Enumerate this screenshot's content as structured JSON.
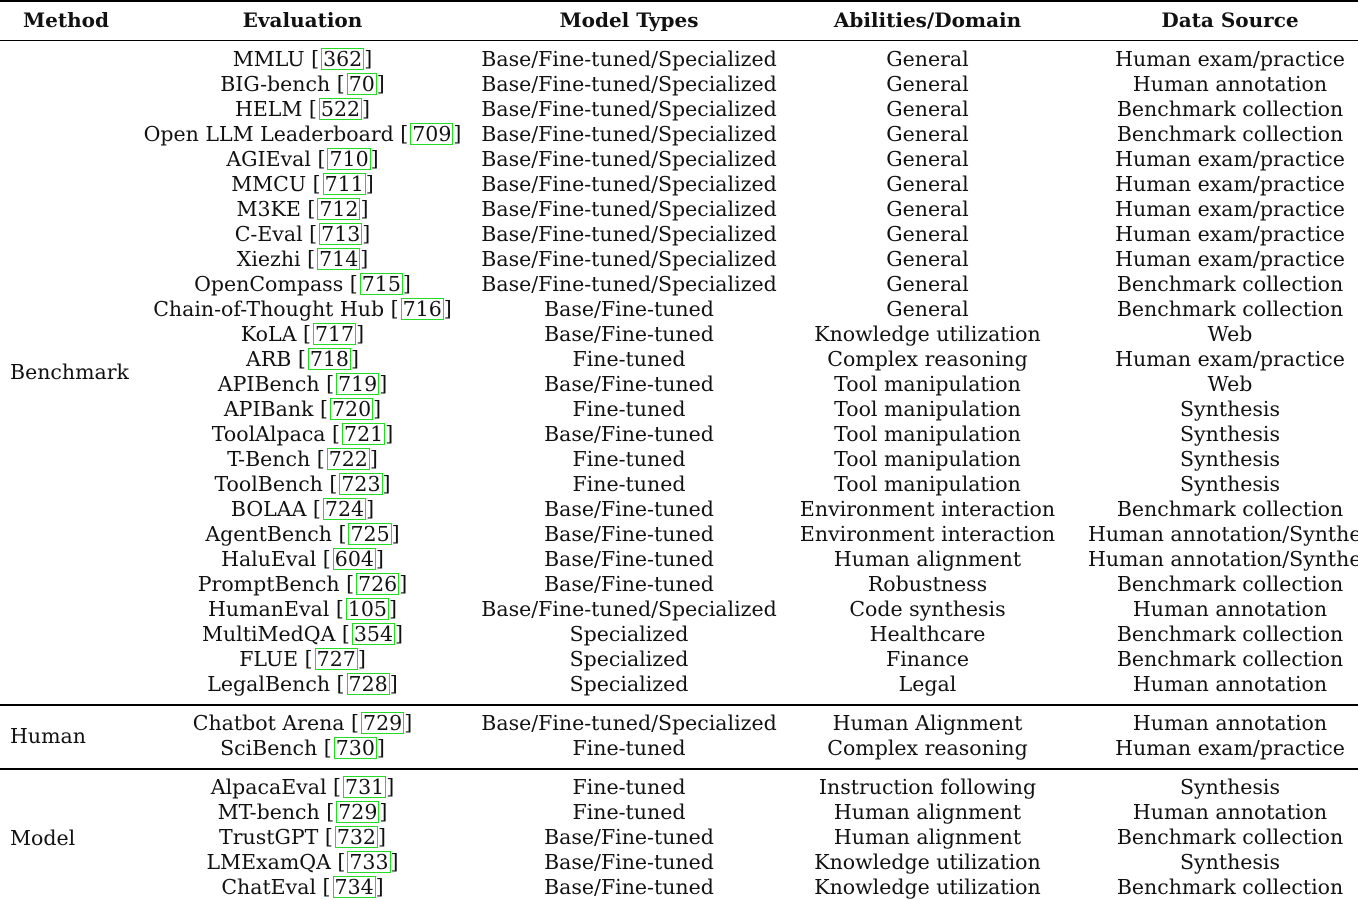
{
  "headers": [
    "Method",
    "Evaluation",
    "Model Types",
    "Abilities/Domain",
    "Data Source"
  ],
  "groups": [
    {
      "method": "Benchmark",
      "rows": [
        {
          "eval": "MMLU",
          "ref": "362",
          "type": "Base/Fine-tuned/Specialized",
          "ability": "General",
          "source": "Human exam/practice"
        },
        {
          "eval": "BIG-bench",
          "ref": "70",
          "type": "Base/Fine-tuned/Specialized",
          "ability": "General",
          "source": "Human annotation"
        },
        {
          "eval": "HELM",
          "ref": "522",
          "type": "Base/Fine-tuned/Specialized",
          "ability": "General",
          "source": "Benchmark collection"
        },
        {
          "eval": "Open LLM Leaderboard",
          "ref": "709",
          "type": "Base/Fine-tuned/Specialized",
          "ability": "General",
          "source": "Benchmark collection"
        },
        {
          "eval": "AGIEval",
          "ref": "710",
          "type": "Base/Fine-tuned/Specialized",
          "ability": "General",
          "source": "Human exam/practice"
        },
        {
          "eval": "MMCU",
          "ref": "711",
          "type": "Base/Fine-tuned/Specialized",
          "ability": "General",
          "source": "Human exam/practice"
        },
        {
          "eval": "M3KE",
          "ref": "712",
          "type": "Base/Fine-tuned/Specialized",
          "ability": "General",
          "source": "Human exam/practice"
        },
        {
          "eval": "C-Eval",
          "ref": "713",
          "type": "Base/Fine-tuned/Specialized",
          "ability": "General",
          "source": "Human exam/practice"
        },
        {
          "eval": "Xiezhi",
          "ref": "714",
          "type": "Base/Fine-tuned/Specialized",
          "ability": "General",
          "source": "Human exam/practice"
        },
        {
          "eval": "OpenCompass",
          "ref": "715",
          "type": "Base/Fine-tuned/Specialized",
          "ability": "General",
          "source": "Benchmark collection"
        },
        {
          "eval": "Chain-of-Thought Hub",
          "ref": "716",
          "type": "Base/Fine-tuned",
          "ability": "General",
          "source": "Benchmark collection"
        },
        {
          "eval": "KoLA",
          "ref": "717",
          "type": "Base/Fine-tuned",
          "ability": "Knowledge utilization",
          "source": "Web"
        },
        {
          "eval": "ARB",
          "ref": "718",
          "type": "Fine-tuned",
          "ability": "Complex reasoning",
          "source": "Human exam/practice"
        },
        {
          "eval": "APIBench",
          "ref": "719",
          "type": "Base/Fine-tuned",
          "ability": "Tool manipulation",
          "source": "Web"
        },
        {
          "eval": "APIBank",
          "ref": "720",
          "type": "Fine-tuned",
          "ability": "Tool manipulation",
          "source": "Synthesis"
        },
        {
          "eval": "ToolAlpaca",
          "ref": "721",
          "type": "Base/Fine-tuned",
          "ability": "Tool manipulation",
          "source": "Synthesis"
        },
        {
          "eval": "T-Bench",
          "ref": "722",
          "type": "Fine-tuned",
          "ability": "Tool manipulation",
          "source": "Synthesis"
        },
        {
          "eval": "ToolBench",
          "ref": "723",
          "type": "Fine-tuned",
          "ability": "Tool manipulation",
          "source": "Synthesis"
        },
        {
          "eval": "BOLAA",
          "ref": "724",
          "type": "Base/Fine-tuned",
          "ability": "Environment interaction",
          "source": "Benchmark collection"
        },
        {
          "eval": "AgentBench",
          "ref": "725",
          "type": "Base/Fine-tuned",
          "ability": "Environment interaction",
          "source": "Human annotation/Synthes"
        },
        {
          "eval": "HaluEval",
          "ref": "604",
          "type": "Base/Fine-tuned",
          "ability": "Human alignment",
          "source": "Human annotation/Synthes"
        },
        {
          "eval": "PromptBench",
          "ref": "726",
          "type": "Base/Fine-tuned",
          "ability": "Robustness",
          "source": "Benchmark collection"
        },
        {
          "eval": "HumanEval",
          "ref": "105",
          "type": "Base/Fine-tuned/Specialized",
          "ability": "Code synthesis",
          "source": "Human annotation"
        },
        {
          "eval": "MultiMedQA",
          "ref": "354",
          "type": "Specialized",
          "ability": "Healthcare",
          "source": "Benchmark collection"
        },
        {
          "eval": "FLUE",
          "ref": "727",
          "type": "Specialized",
          "ability": "Finance",
          "source": "Benchmark collection"
        },
        {
          "eval": "LegalBench",
          "ref": "728",
          "type": "Specialized",
          "ability": "Legal",
          "source": "Human annotation"
        }
      ]
    },
    {
      "method": "Human",
      "rows": [
        {
          "eval": "Chatbot Arena",
          "ref": "729",
          "type": "Base/Fine-tuned/Specialized",
          "ability": "Human Alignment",
          "source": "Human annotation"
        },
        {
          "eval": "SciBench",
          "ref": "730",
          "type": "Fine-tuned",
          "ability": "Complex reasoning",
          "source": "Human exam/practice"
        }
      ]
    },
    {
      "method": "Model",
      "rows": [
        {
          "eval": "AlpacaEval",
          "ref": "731",
          "type": "Fine-tuned",
          "ability": "Instruction following",
          "source": "Synthesis"
        },
        {
          "eval": "MT-bench",
          "ref": "729",
          "type": "Fine-tuned",
          "ability": "Human alignment",
          "source": "Human annotation"
        },
        {
          "eval": "TrustGPT",
          "ref": "732",
          "type": "Base/Fine-tuned",
          "ability": "Human alignment",
          "source": "Benchmark collection"
        },
        {
          "eval": "LMExamQA",
          "ref": "733",
          "type": "Base/Fine-tuned",
          "ability": "Knowledge utilization",
          "source": "Synthesis"
        },
        {
          "eval": "ChatEval",
          "ref": "734",
          "type": "Base/Fine-tuned",
          "ability": "Knowledge utilization",
          "source": "Benchmark collection"
        }
      ]
    }
  ]
}
